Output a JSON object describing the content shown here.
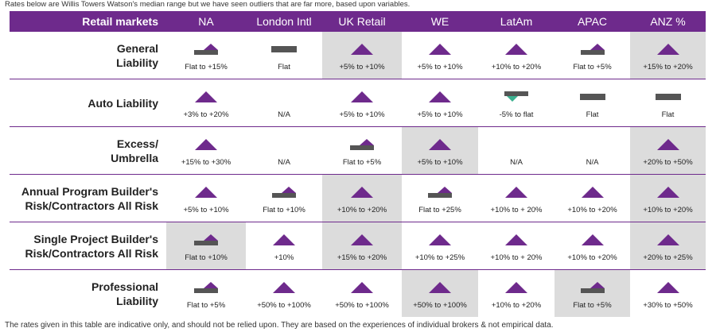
{
  "top_note": "Rates below are Willis Towers Watson's median range but we have seen outliers that are far more, based upon variables.",
  "bottom_note": "The rates given in this table are indicative only, and should not be relied upon. They are based on the experiences of individual brokers & not empirical data.",
  "colors": {
    "purple": "#6e2a8c",
    "bar": "#555555",
    "teal": "#3bb08f",
    "shade": "#dcdcdc"
  },
  "header": [
    "Retail markets",
    "NA",
    "London Intl",
    "UK Retail",
    "WE",
    "LatAm",
    "APAC",
    "ANZ %"
  ],
  "rows": [
    {
      "label": "General\nLiability",
      "cells": [
        {
          "icon": "flat-up",
          "text": "Flat to +15%",
          "shaded": false
        },
        {
          "icon": "flat",
          "text": "Flat",
          "shaded": false
        },
        {
          "icon": "up",
          "text": "+5% to +10%",
          "shaded": true
        },
        {
          "icon": "up",
          "text": "+5% to +10%",
          "shaded": false
        },
        {
          "icon": "up",
          "text": "+10% to +20%",
          "shaded": false
        },
        {
          "icon": "flat-up",
          "text": "Flat to +5%",
          "shaded": false
        },
        {
          "icon": "up",
          "text": "+15% to +20%",
          "shaded": true
        }
      ]
    },
    {
      "label": "Auto Liability",
      "cells": [
        {
          "icon": "up",
          "text": "+3% to +20%",
          "shaded": false
        },
        {
          "icon": "none",
          "text": "N/A",
          "shaded": false
        },
        {
          "icon": "up",
          "text": "+5% to +10%",
          "shaded": false
        },
        {
          "icon": "up",
          "text": "+5% to +10%",
          "shaded": false
        },
        {
          "icon": "flat-down",
          "text": "-5% to flat",
          "shaded": false
        },
        {
          "icon": "flat",
          "text": "Flat",
          "shaded": false
        },
        {
          "icon": "flat",
          "text": "Flat",
          "shaded": false
        }
      ]
    },
    {
      "label": "Excess/\nUmbrella",
      "cells": [
        {
          "icon": "up",
          "text": "+15% to +30%",
          "shaded": false
        },
        {
          "icon": "none",
          "text": "N/A",
          "shaded": false
        },
        {
          "icon": "flat-up",
          "text": "Flat to +5%",
          "shaded": false
        },
        {
          "icon": "up",
          "text": "+5% to +10%",
          "shaded": true
        },
        {
          "icon": "none",
          "text": "N/A",
          "shaded": false
        },
        {
          "icon": "none",
          "text": "N/A",
          "shaded": false
        },
        {
          "icon": "up",
          "text": "+20% to +50%",
          "shaded": true
        }
      ]
    },
    {
      "label": "Annual Program Builder's\nRisk/Contractors All Risk",
      "cells": [
        {
          "icon": "up",
          "text": "+5% to +10%",
          "shaded": false
        },
        {
          "icon": "flat-up",
          "text": "Flat to +10%",
          "shaded": false
        },
        {
          "icon": "up",
          "text": "+10% to +20%",
          "shaded": true
        },
        {
          "icon": "flat-up",
          "text": "Flat to +25%",
          "shaded": false
        },
        {
          "icon": "up",
          "text": "+10% to + 20%",
          "shaded": false
        },
        {
          "icon": "up",
          "text": "+10% to +20%",
          "shaded": false
        },
        {
          "icon": "up",
          "text": "+10% to +20%",
          "shaded": true
        }
      ]
    },
    {
      "label": "Single Project Builder's\nRisk/Contractors All Risk",
      "cells": [
        {
          "icon": "flat-up",
          "text": "Flat to +10%",
          "shaded": true
        },
        {
          "icon": "up",
          "text": "+10%",
          "shaded": false
        },
        {
          "icon": "up",
          "text": "+15% to +20%",
          "shaded": true
        },
        {
          "icon": "up",
          "text": "+10% to +25%",
          "shaded": false
        },
        {
          "icon": "up",
          "text": "+10% to + 20%",
          "shaded": false
        },
        {
          "icon": "up",
          "text": "+10% to +20%",
          "shaded": false
        },
        {
          "icon": "up",
          "text": "+20% to +25%",
          "shaded": true
        }
      ]
    },
    {
      "label": "Professional\nLiability",
      "cells": [
        {
          "icon": "flat-up",
          "text": "Flat to +5%",
          "shaded": false
        },
        {
          "icon": "up",
          "text": "+50% to +100%",
          "shaded": false
        },
        {
          "icon": "up",
          "text": "+50% to +100%",
          "shaded": false
        },
        {
          "icon": "up",
          "text": "+50% to +100%",
          "shaded": true
        },
        {
          "icon": "up",
          "text": "+10% to +20%",
          "shaded": false
        },
        {
          "icon": "flat-up",
          "text": "Flat to +5%",
          "shaded": true
        },
        {
          "icon": "up",
          "text": "+30% to +50%",
          "shaded": false
        }
      ]
    }
  ]
}
